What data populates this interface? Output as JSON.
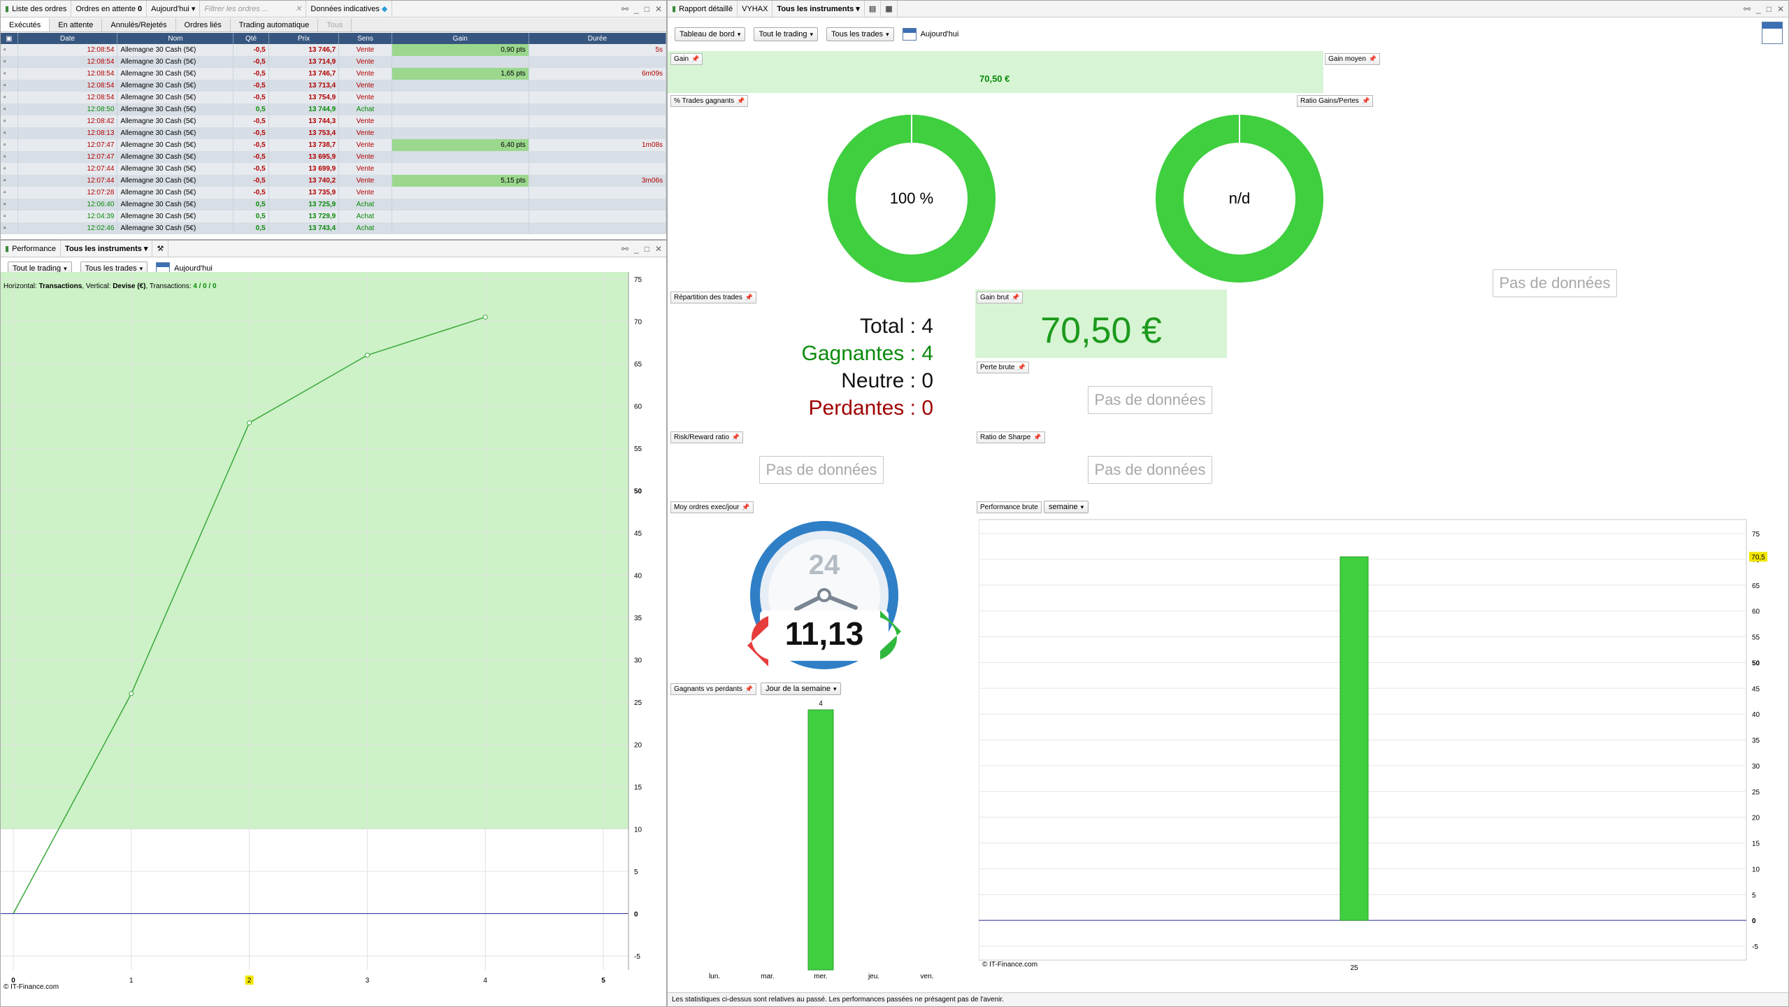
{
  "orders_panel": {
    "title": "Liste des ordres",
    "pending_label": "Ordres en attente",
    "pending_count": "0",
    "period": "Aujourd'hui",
    "filter_placeholder": "Filtrer les ordres ...",
    "indicative": "Données indicatives",
    "tabs": [
      "Exécutés",
      "En attente",
      "Annulés/Rejetés",
      "Ordres liés",
      "Trading automatique",
      "Tous"
    ],
    "columns": [
      "Date",
      "Nom",
      "Qté",
      "Prix",
      "Sens",
      "Gain",
      "Durée"
    ],
    "rows": [
      {
        "date": "12:08:54",
        "nom": "Allemagne 30 Cash (5€)",
        "qte": "-0,5",
        "prix": "13 746,7",
        "sens": "Vente",
        "gain": "0,90 pts",
        "duree": "5s"
      },
      {
        "date": "12:08:54",
        "nom": "Allemagne 30 Cash (5€)",
        "qte": "-0,5",
        "prix": "13 714,9",
        "sens": "Vente",
        "gain": "",
        "duree": ""
      },
      {
        "date": "12:08:54",
        "nom": "Allemagne 30 Cash (5€)",
        "qte": "-0,5",
        "prix": "13 746,7",
        "sens": "Vente",
        "gain": "1,65 pts",
        "duree": "6m09s"
      },
      {
        "date": "12:08:54",
        "nom": "Allemagne 30 Cash (5€)",
        "qte": "-0,5",
        "prix": "13 713,4",
        "sens": "Vente",
        "gain": "",
        "duree": ""
      },
      {
        "date": "12:08:54",
        "nom": "Allemagne 30 Cash (5€)",
        "qte": "-0,5",
        "prix": "13 754,9",
        "sens": "Vente",
        "gain": "",
        "duree": ""
      },
      {
        "date": "12:08:50",
        "nom": "Allemagne 30 Cash (5€)",
        "qte": "0,5",
        "prix": "13 744,9",
        "sens": "Achat",
        "gain": "",
        "duree": ""
      },
      {
        "date": "12:08:42",
        "nom": "Allemagne 30 Cash (5€)",
        "qte": "-0,5",
        "prix": "13 744,3",
        "sens": "Vente",
        "gain": "",
        "duree": ""
      },
      {
        "date": "12:08:13",
        "nom": "Allemagne 30 Cash (5€)",
        "qte": "-0,5",
        "prix": "13 753,4",
        "sens": "Vente",
        "gain": "",
        "duree": ""
      },
      {
        "date": "12:07:47",
        "nom": "Allemagne 30 Cash (5€)",
        "qte": "-0,5",
        "prix": "13 738,7",
        "sens": "Vente",
        "gain": "6,40 pts",
        "duree": "1m08s"
      },
      {
        "date": "12:07:47",
        "nom": "Allemagne 30 Cash (5€)",
        "qte": "-0,5",
        "prix": "13 695,9",
        "sens": "Vente",
        "gain": "",
        "duree": ""
      },
      {
        "date": "12:07:44",
        "nom": "Allemagne 30 Cash (5€)",
        "qte": "-0,5",
        "prix": "13 699,9",
        "sens": "Vente",
        "gain": "",
        "duree": ""
      },
      {
        "date": "12:07:44",
        "nom": "Allemagne 30 Cash (5€)",
        "qte": "-0,5",
        "prix": "13 740,2",
        "sens": "Vente",
        "gain": "5,15 pts",
        "duree": "3m06s"
      },
      {
        "date": "12:07:28",
        "nom": "Allemagne 30 Cash (5€)",
        "qte": "-0,5",
        "prix": "13 735,9",
        "sens": "Vente",
        "gain": "",
        "duree": ""
      },
      {
        "date": "12:06:40",
        "nom": "Allemagne 30 Cash (5€)",
        "qte": "0,5",
        "prix": "13 725,9",
        "sens": "Achat",
        "gain": "",
        "duree": ""
      },
      {
        "date": "12:04:39",
        "nom": "Allemagne 30 Cash (5€)",
        "qte": "0,5",
        "prix": "13 729,9",
        "sens": "Achat",
        "gain": "",
        "duree": ""
      },
      {
        "date": "12:02:46",
        "nom": "Allemagne 30 Cash (5€)",
        "qte": "0,5",
        "prix": "13 743,4",
        "sens": "Achat",
        "gain": "",
        "duree": ""
      }
    ]
  },
  "perf_panel": {
    "title": "Performance",
    "instruments": "Tous les instruments",
    "dd_trading": "Tout le trading",
    "dd_trades": "Tous les trades",
    "today": "Aujourd'hui",
    "info_prefix": "Horizontal: ",
    "info_h": "Transactions",
    "info_mid": ", Vertical: ",
    "info_v": "Devise (€)",
    "info_t": ", Transactions: ",
    "info_counts": "4 / 0 / 0",
    "copyright": "© IT-Finance.com"
  },
  "report_panel": {
    "title": "Rapport détaillé",
    "account": "VYHAX",
    "instruments": "Tous les instruments",
    "dd_board": "Tableau de bord",
    "dd_trading": "Tout le trading",
    "dd_trades": "Tous les trades",
    "today": "Aujourd'hui",
    "gain_label": "Gain",
    "gain_value": "70,50 €",
    "gain_moyen_label": "Gain moyen",
    "pct_label": "% Trades gagnants",
    "pct_value": "100 %",
    "ratio_label": "Ratio Gains/Pertes",
    "ratio_value": "n/d",
    "no_data": "Pas de données",
    "repartition_label": "Répartition des trades",
    "total_label": "Total : ",
    "total_value": "4",
    "gagnantes_label": "Gagnantes : ",
    "gagnantes_value": "4",
    "neutre_label": "Neutre : ",
    "neutre_value": "0",
    "perdantes_label": "Perdantes : ",
    "perdantes_value": "0",
    "gain_brut_label": "Gain brut",
    "gain_brut_value": "70,50 €",
    "perte_brute_label": "Perte brute",
    "risk_label": "Risk/Reward ratio",
    "sharpe_label": "Ratio de Sharpe",
    "moy_label": "Moy ordres exec/jour",
    "moy_value": "11,13",
    "clock_value": "24",
    "perf_brute_label": "Performance brute",
    "perf_brute_period": "semaine",
    "gvp_label": "Gagnants vs perdants",
    "gvp_period": "Jour de la semaine",
    "footer": "Les statistiques ci-dessus sont relatives au passé. Les performances passées ne présagent pas de l'avenir.",
    "copyright": "© IT-Finance.com"
  },
  "colors": {
    "accent_green": "#3fcf3f",
    "header_blue": "#37567f",
    "sell_red": "#b30000",
    "buy_green": "#0a8a0a",
    "light_green_bg": "#d7f5d4"
  },
  "chart_data": [
    {
      "type": "line",
      "x": [
        0,
        1,
        2,
        3,
        4
      ],
      "y": [
        0,
        26,
        58,
        66,
        70.5
      ],
      "xlim": [
        0,
        5
      ],
      "ylim": [
        -5,
        75
      ],
      "x_ticks": [
        "0",
        "1",
        "2",
        "3",
        "4",
        "5"
      ],
      "y_ticks": [
        "-5",
        "0",
        "5",
        "10",
        "15",
        "20",
        "25",
        "30",
        "35",
        "40",
        "45",
        "50",
        "55",
        "60",
        "65",
        "70",
        "75"
      ],
      "grid": true
    },
    {
      "type": "bar",
      "categories": [
        "lun.",
        "mar.",
        "mer.",
        "jeu.",
        "ven."
      ],
      "values": [
        0,
        0,
        4,
        0,
        0
      ],
      "data_labels": [
        "",
        "",
        "4",
        "",
        ""
      ]
    },
    {
      "type": "bar",
      "categories": [
        "25"
      ],
      "values": [
        70.5
      ],
      "ylim": [
        -5,
        75
      ],
      "y_ticks": [
        "-5",
        "0",
        "5",
        "10",
        "15",
        "20",
        "25",
        "30",
        "35",
        "40",
        "45",
        "50",
        "55",
        "60",
        "65",
        "70",
        "75"
      ],
      "last_value_marker": "70,5",
      "grid": true
    }
  ]
}
